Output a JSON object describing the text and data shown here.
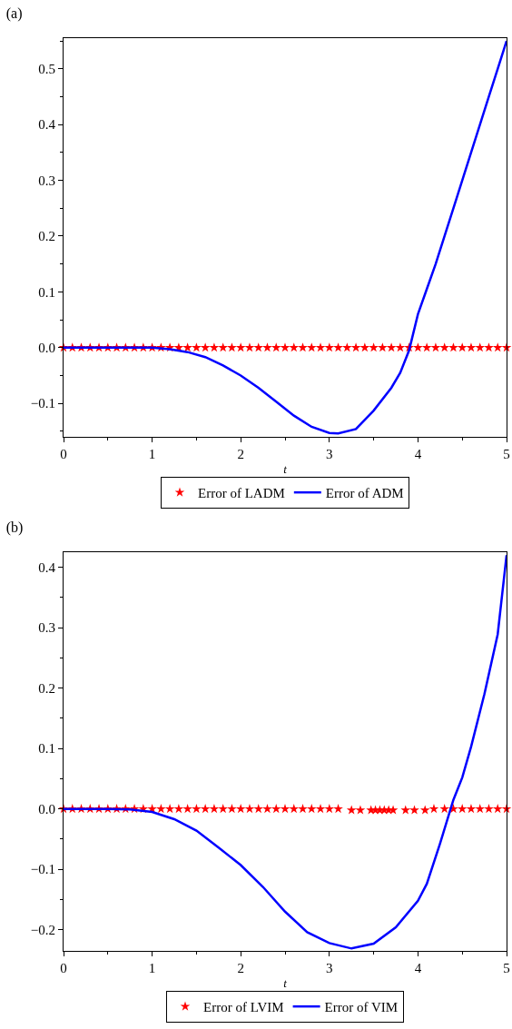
{
  "chart_data": [
    {
      "type": "line",
      "title": "(a)",
      "xlabel": "t",
      "xlim": [
        0,
        5
      ],
      "xticks": [
        0,
        1,
        2,
        3,
        4,
        5
      ],
      "ylim": [
        -0.16,
        0.555
      ],
      "yticks": [
        -0.1,
        {
          "value": 0,
          "label": "0.0"
        },
        0.1,
        0.2,
        0.3,
        0.4,
        0.5
      ],
      "grid": false,
      "legend": "bottom",
      "series": [
        {
          "name": "Error of LADM",
          "type": "scatter",
          "marker": "star",
          "color": "#ff0000",
          "x": [
            0,
            0.1,
            0.2,
            0.3,
            0.4,
            0.5,
            0.6,
            0.7,
            0.8,
            0.9,
            1.0,
            1.1,
            1.2,
            1.3,
            1.4,
            1.5,
            1.6,
            1.7,
            1.8,
            1.9,
            2.0,
            2.1,
            2.2,
            2.3,
            2.4,
            2.5,
            2.6,
            2.7,
            2.8,
            2.9,
            3.0,
            3.1,
            3.2,
            3.3,
            3.4,
            3.5,
            3.6,
            3.7,
            3.8,
            3.9,
            4.0,
            4.1,
            4.2,
            4.3,
            4.4,
            4.5,
            4.6,
            4.7,
            4.8,
            4.9,
            5.0
          ],
          "values": [
            0,
            0,
            0,
            0,
            0,
            0,
            0,
            0,
            0,
            0,
            0,
            0,
            0,
            0,
            0,
            0,
            0,
            0,
            0,
            0,
            0,
            0,
            0,
            0,
            0,
            0,
            0,
            0,
            0,
            0,
            0,
            0,
            0,
            0,
            0,
            0,
            0,
            0,
            0,
            0,
            0,
            0,
            0,
            0,
            0,
            0,
            0,
            0,
            0,
            0,
            0
          ]
        },
        {
          "name": "Error of ADM",
          "type": "line",
          "marker": "none",
          "line_style": "solid",
          "color": "#0000ff",
          "x": [
            0,
            0.5,
            1.0,
            1.2,
            1.4,
            1.6,
            1.8,
            2.0,
            2.2,
            2.4,
            2.6,
            2.8,
            3.0,
            3.1,
            3.3,
            3.5,
            3.7,
            3.8,
            3.9,
            4.0,
            4.1,
            4.2,
            4.4,
            4.5,
            4.6,
            4.7,
            4.8,
            4.9,
            5.0
          ],
          "values": [
            0,
            0,
            0,
            -0.003,
            -0.008,
            -0.017,
            -0.032,
            -0.05,
            -0.072,
            -0.097,
            -0.122,
            -0.142,
            -0.153,
            -0.154,
            -0.146,
            -0.113,
            -0.072,
            -0.045,
            -0.005,
            0.06,
            0.105,
            0.15,
            0.25,
            0.3,
            0.35,
            0.4,
            0.45,
            0.5,
            0.55
          ]
        }
      ]
    },
    {
      "type": "line",
      "title": "(b)",
      "xlabel": "t",
      "xlim": [
        0,
        5
      ],
      "xticks": [
        0,
        1,
        2,
        3,
        4,
        5
      ],
      "ylim": [
        -0.235,
        0.425
      ],
      "yticks": [
        -0.2,
        -0.1,
        {
          "value": 0,
          "label": "0.0"
        },
        0.1,
        0.2,
        0.3,
        0.4
      ],
      "grid": false,
      "legend": "bottom",
      "series": [
        {
          "name": "Error of LVIM",
          "type": "scatter",
          "marker": "star",
          "color": "#ff0000",
          "x": [
            0,
            0.1,
            0.2,
            0.3,
            0.4,
            0.5,
            0.6,
            0.7,
            0.8,
            0.9,
            1.0,
            1.1,
            1.2,
            1.3,
            1.4,
            1.5,
            1.6,
            1.7,
            1.8,
            1.9,
            2.0,
            2.1,
            2.2,
            2.3,
            2.4,
            2.5,
            2.6,
            2.7,
            2.8,
            2.9,
            3.0,
            3.1,
            3.25,
            3.35,
            3.47,
            3.52,
            3.57,
            3.62,
            3.67,
            3.72,
            3.86,
            3.96,
            4.08,
            4.18,
            4.3,
            4.4,
            4.5,
            4.6,
            4.7,
            4.8,
            4.9,
            5.0
          ],
          "values": [
            0,
            0,
            0,
            0,
            0,
            0,
            0,
            0,
            0,
            0,
            0,
            0,
            0,
            0,
            0,
            0,
            0,
            0,
            0,
            0,
            0,
            0,
            0,
            0,
            0,
            0,
            0,
            0,
            0,
            0,
            0,
            0,
            -0.002,
            -0.002,
            -0.002,
            -0.002,
            -0.002,
            -0.002,
            -0.002,
            -0.002,
            -0.002,
            -0.002,
            -0.002,
            0,
            0,
            0,
            0,
            0,
            0,
            0,
            0,
            0
          ]
        },
        {
          "name": "Error of VIM",
          "type": "line",
          "marker": "none",
          "line_style": "solid",
          "color": "#0000ff",
          "x": [
            0,
            0.5,
            0.75,
            1.0,
            1.25,
            1.5,
            1.75,
            2.0,
            2.25,
            2.5,
            2.75,
            3.0,
            3.25,
            3.5,
            3.75,
            4.0,
            4.1,
            4.25,
            4.4,
            4.5,
            4.6,
            4.75,
            4.9,
            5.0
          ],
          "values": [
            0,
            0,
            -0.001,
            -0.005,
            -0.017,
            -0.036,
            -0.064,
            -0.093,
            -0.129,
            -0.17,
            -0.204,
            -0.222,
            -0.231,
            -0.223,
            -0.196,
            -0.152,
            -0.124,
            -0.057,
            0.015,
            0.052,
            0.103,
            0.19,
            0.289,
            0.42
          ]
        }
      ]
    }
  ]
}
